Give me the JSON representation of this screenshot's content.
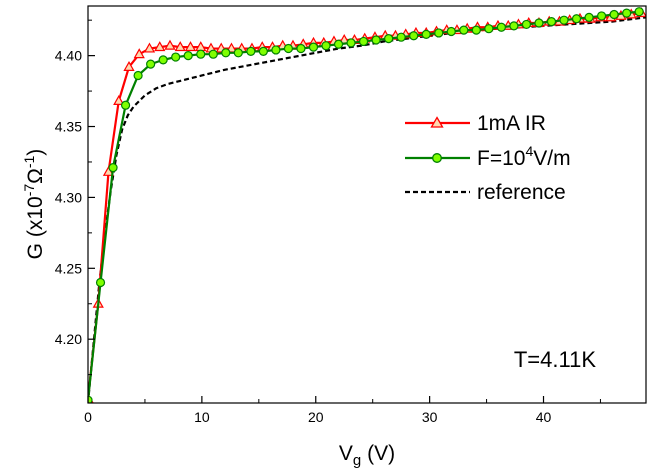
{
  "chart_data": {
    "type": "line",
    "xlabel": {
      "main": "V",
      "sub": "g",
      "unit": " (V)"
    },
    "ylabel": {
      "main": "G (x10",
      "exp1": "-7",
      "mid": "Ω",
      "exp2": "-1",
      "end": ")"
    },
    "xlim": [
      0,
      49
    ],
    "ylim": [
      4.155,
      4.435
    ],
    "xticks": [
      0,
      10,
      20,
      30,
      40
    ],
    "xtick_labels": [
      "0",
      "10",
      "20",
      "30",
      "40"
    ],
    "yticks": [
      4.2,
      4.25,
      4.3,
      4.35,
      4.4
    ],
    "ytick_labels": [
      "4.20",
      "4.25",
      "4.30",
      "4.35",
      "4.40"
    ],
    "annotation": "T=4.11K",
    "legend_position": "upper-right",
    "legend_entries": [
      {
        "label": "1mA IR",
        "series": 0
      },
      {
        "label_pre": "F=10",
        "label_sup": "4",
        "label_post": "V/m",
        "series": 1
      },
      {
        "label": "reference",
        "series": 2
      }
    ],
    "series": [
      {
        "color": "#ff0000",
        "marker": "triangle",
        "marker_fill": "#ffd8b0",
        "x": [
          0.0,
          0.9,
          1.8,
          2.7,
          3.6,
          4.5,
          5.4,
          6.3,
          7.2,
          8.1,
          9.0,
          9.9,
          10.8,
          11.7,
          12.6,
          13.5,
          14.4,
          15.3,
          16.2,
          17.1,
          18.0,
          18.9,
          19.8,
          20.7,
          21.6,
          22.5,
          23.4,
          24.3,
          25.2,
          26.1,
          27.0,
          27.9,
          28.8,
          29.7,
          30.6,
          31.5,
          32.4,
          33.3,
          34.2,
          35.1,
          36.0,
          36.9,
          37.8,
          38.7,
          39.6,
          40.5,
          41.4,
          42.3,
          43.2,
          44.1,
          45.0,
          45.9,
          46.8,
          47.7,
          48.6
        ],
        "y": [
          4.158,
          4.225,
          4.318,
          4.368,
          4.392,
          4.401,
          4.405,
          4.406,
          4.407,
          4.406,
          4.406,
          4.406,
          4.405,
          4.405,
          4.405,
          4.405,
          4.405,
          4.406,
          4.406,
          4.407,
          4.407,
          4.408,
          4.409,
          4.409,
          4.41,
          4.411,
          4.411,
          4.412,
          4.413,
          4.414,
          4.414,
          4.415,
          4.416,
          4.416,
          4.417,
          4.418,
          4.418,
          4.419,
          4.42,
          4.42,
          4.421,
          4.421,
          4.422,
          4.423,
          4.423,
          4.424,
          4.424,
          4.425,
          4.426,
          4.426,
          4.427,
          4.427,
          4.428,
          4.429,
          4.43
        ]
      },
      {
        "color": "#008000",
        "marker": "circle",
        "marker_fill": "#7fff00",
        "x": [
          0.0,
          1.1,
          2.2,
          3.3,
          4.4,
          5.5,
          6.6,
          7.7,
          8.8,
          9.9,
          11.0,
          12.1,
          13.2,
          14.3,
          15.4,
          16.5,
          17.6,
          18.7,
          19.8,
          20.9,
          22.0,
          23.1,
          24.2,
          25.3,
          26.4,
          27.5,
          28.6,
          29.7,
          30.8,
          31.9,
          33.0,
          34.1,
          35.2,
          36.3,
          37.4,
          38.5,
          39.6,
          40.7,
          41.8,
          42.9,
          44.0,
          45.1,
          46.2,
          47.3,
          48.4
        ],
        "y": [
          4.157,
          4.24,
          4.321,
          4.365,
          4.386,
          4.394,
          4.397,
          4.399,
          4.4,
          4.401,
          4.401,
          4.402,
          4.402,
          4.403,
          4.403,
          4.404,
          4.405,
          4.405,
          4.406,
          4.407,
          4.408,
          4.409,
          4.41,
          4.411,
          4.412,
          4.413,
          4.414,
          4.415,
          4.416,
          4.417,
          4.418,
          4.418,
          4.419,
          4.42,
          4.421,
          4.422,
          4.423,
          4.424,
          4.425,
          4.426,
          4.427,
          4.428,
          4.429,
          4.43,
          4.431
        ]
      },
      {
        "color": "#000000",
        "dash": "5,3",
        "marker": "none",
        "x": [
          0.0,
          0.5,
          1.0,
          1.5,
          2.0,
          2.5,
          3.0,
          3.5,
          4.0,
          5.0,
          6.0,
          7.0,
          8.0,
          9.0,
          10.0,
          12.0,
          14.0,
          16.0,
          18.0,
          20.0,
          22.0,
          24.0,
          26.0,
          28.0,
          30.0,
          32.0,
          34.0,
          36.0,
          38.0,
          40.0,
          42.0,
          44.0,
          46.0,
          48.0,
          49.0
        ],
        "y": [
          4.155,
          4.198,
          4.24,
          4.275,
          4.305,
          4.33,
          4.348,
          4.358,
          4.364,
          4.372,
          4.377,
          4.38,
          4.382,
          4.384,
          4.386,
          4.39,
          4.393,
          4.396,
          4.399,
          4.402,
          4.405,
          4.407,
          4.41,
          4.412,
          4.414,
          4.416,
          4.418,
          4.419,
          4.42,
          4.421,
          4.422,
          4.423,
          4.424,
          4.426,
          4.427
        ]
      }
    ]
  }
}
